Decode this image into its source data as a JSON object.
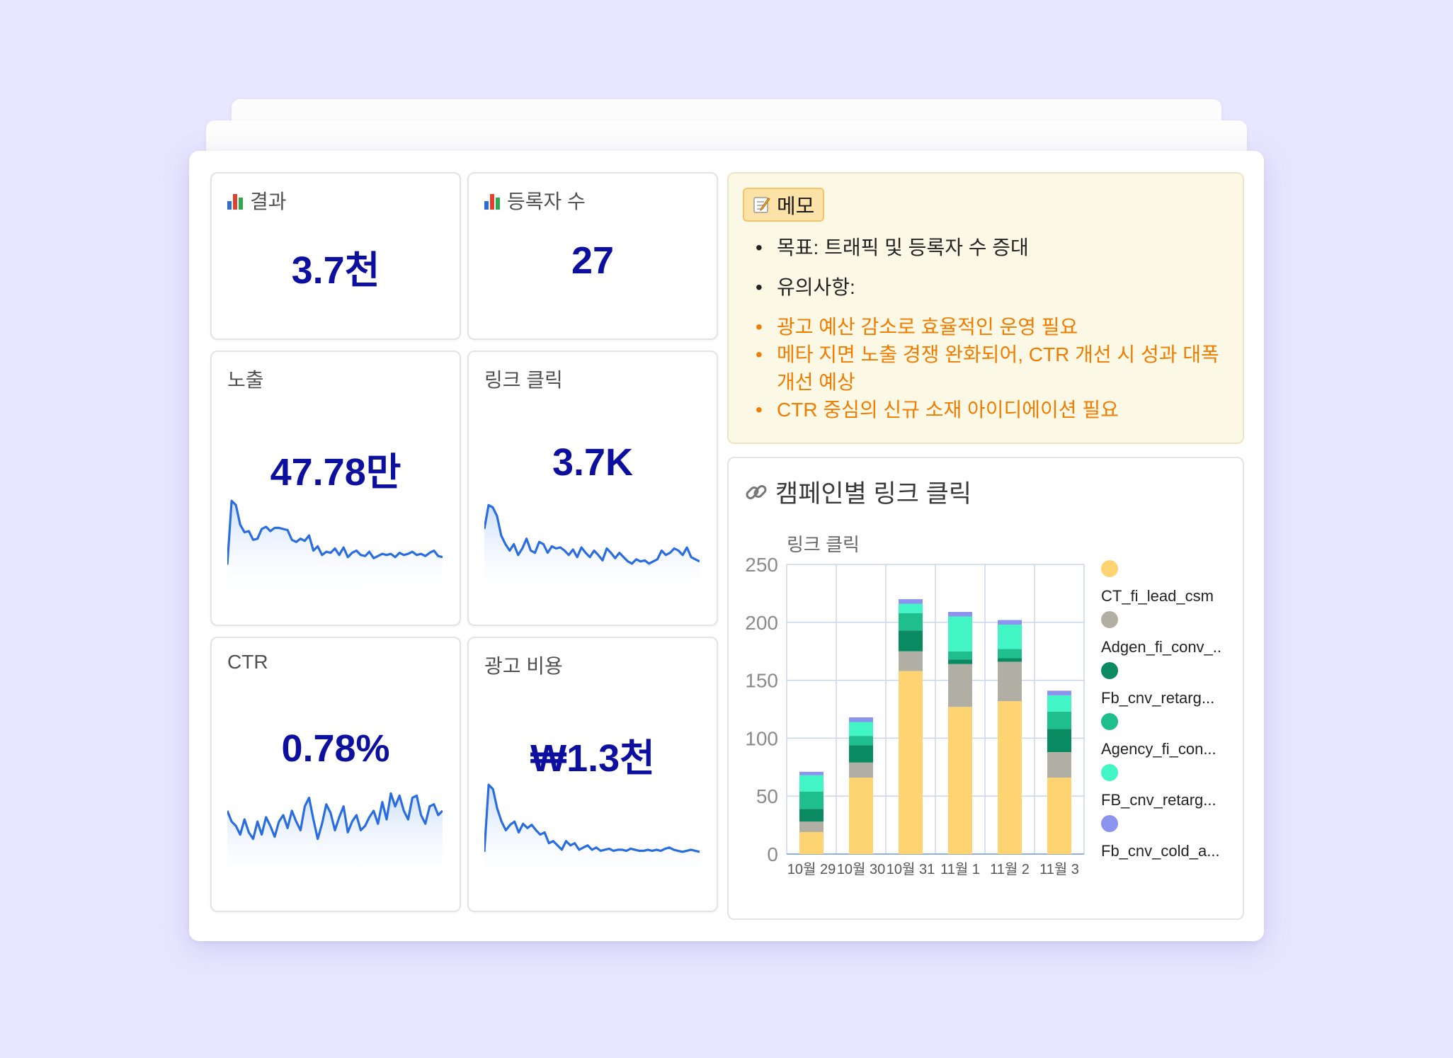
{
  "metrics": {
    "results": {
      "label": "결과",
      "value": "3.7천"
    },
    "registrants": {
      "label": "등록자 수",
      "value": "27"
    },
    "impressions": {
      "label": "노출",
      "value": "47.78만",
      "sparkline": [
        3,
        62,
        58,
        40,
        33,
        34,
        26,
        27,
        36,
        38,
        34,
        37,
        37,
        36,
        35,
        26,
        24,
        27,
        25,
        30,
        16,
        20,
        12,
        15,
        14,
        18,
        12,
        19,
        10,
        14,
        16,
        12,
        11,
        15,
        9,
        11,
        13,
        12,
        13,
        10,
        14,
        12,
        13,
        15,
        12,
        13,
        11,
        14,
        16,
        11,
        10
      ]
    },
    "link_clicks": {
      "label": "링크 클릭",
      "value": "3.7K",
      "sparkline": [
        36,
        58,
        56,
        48,
        30,
        22,
        16,
        22,
        12,
        18,
        27,
        16,
        14,
        24,
        22,
        14,
        20,
        18,
        19,
        16,
        12,
        17,
        10,
        19,
        14,
        10,
        16,
        12,
        7,
        18,
        14,
        9,
        14,
        10,
        6,
        4,
        8,
        6,
        7,
        4,
        6,
        8,
        16,
        12,
        14,
        18,
        16,
        12,
        19,
        10,
        8,
        6
      ]
    },
    "ctr": {
      "label": "CTR",
      "value": "0.78%",
      "sparkline": [
        40,
        30,
        26,
        18,
        32,
        20,
        14,
        30,
        18,
        34,
        26,
        16,
        30,
        36,
        24,
        40,
        30,
        22,
        44,
        52,
        32,
        14,
        28,
        46,
        38,
        22,
        34,
        44,
        20,
        30,
        36,
        22,
        26,
        34,
        40,
        28,
        48,
        32,
        56,
        44,
        54,
        40,
        32,
        52,
        54,
        36,
        28,
        44,
        46,
        36,
        40
      ]
    },
    "ad_spend": {
      "label": "광고 비용",
      "value": "₩1.3천",
      "sparkline": [
        2,
        64,
        60,
        42,
        30,
        22,
        27,
        30,
        20,
        28,
        24,
        27,
        22,
        18,
        20,
        10,
        12,
        8,
        4,
        12,
        8,
        10,
        4,
        6,
        8,
        4,
        6,
        3,
        4,
        5,
        3,
        4,
        4,
        3,
        5,
        4,
        3,
        3,
        4,
        3,
        4,
        3,
        5,
        6,
        4,
        3,
        2,
        3,
        4,
        3,
        2
      ]
    }
  },
  "memo": {
    "tag": "메모",
    "lines": [
      "목표: 트래픽 및 등록자 수 증대",
      "유의사항:"
    ],
    "notes": [
      "광고 예산 감소로 효율적인 운영 필요",
      "메타 지면 노출 경쟁 완화되어, CTR 개선 시 성과 대폭",
      "개선 예상",
      "CTR 중심의 신규 소재 아이디에이션 필요"
    ]
  },
  "chart_panel_title": "캠페인별 링크 클릭",
  "icons": {
    "metric": "bar-chart-icon",
    "memo": "memo-icon",
    "chart": "link-icon"
  },
  "colors": {
    "value": "#0d109e",
    "spark": "#2a6de0",
    "memo_bg": "#fcf8e6",
    "memo_note": "#f07c00",
    "background": "#e8e6ff"
  },
  "chart_data": {
    "type": "bar",
    "stacked": true,
    "title": "캠페인별 링크 클릭",
    "ylabel": "링크 클릭",
    "xlabel": "",
    "ylim": [
      0,
      250
    ],
    "yticks": [
      0,
      50,
      100,
      150,
      200,
      250
    ],
    "grid": true,
    "legend_position": "right",
    "categories": [
      "10월 29",
      "10월 30",
      "10월 31",
      "11월 1",
      "11월 2",
      "11월 3"
    ],
    "series": [
      {
        "name": "CT_fi_lead_csm",
        "color": "#fed473",
        "values": [
          19,
          66,
          158,
          127,
          132,
          66
        ]
      },
      {
        "name": "Adgen_fi_conv_..",
        "color": "#b1afa3",
        "values": [
          9,
          13,
          17,
          37,
          34,
          22
        ]
      },
      {
        "name": "Fb_cnv_retarg...",
        "color": "#0a8a61",
        "values": [
          11,
          15,
          18,
          4,
          3,
          20
        ]
      },
      {
        "name": "Agency_fi_con...",
        "color": "#1fbf8d",
        "values": [
          15,
          8,
          15,
          7,
          8,
          15
        ]
      },
      {
        "name": "FB_cnv_retarg...",
        "color": "#42f5c4",
        "values": [
          14,
          12,
          8,
          30,
          21,
          14
        ]
      },
      {
        "name": "Fb_cnv_cold_a...",
        "color": "#8b93ee",
        "values": [
          3,
          4,
          4,
          4,
          4,
          4
        ]
      }
    ]
  }
}
